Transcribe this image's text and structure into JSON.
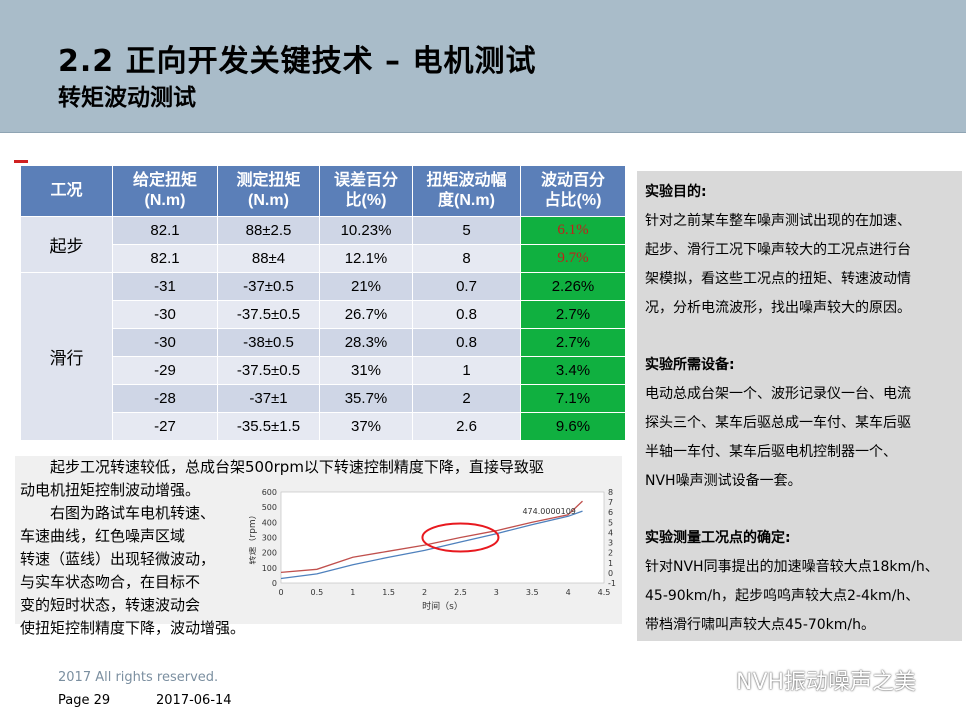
{
  "header": {
    "title": "2.2 正向开发关键技术 – 电机测试",
    "subtitle": "转矩波动测试"
  },
  "table": {
    "headers": [
      "工况",
      "给定扭矩\n(N.m)",
      "测定扭矩\n(N.m)",
      "误差百分\n比(%)",
      "扭矩波动幅\n度(N.m)",
      "波动百分\n占比(%)"
    ],
    "groups": [
      {
        "name": "起步",
        "rows": [
          [
            "82.1",
            "88±2.5",
            "10.23%",
            "5",
            "6.1%"
          ],
          [
            "82.1",
            "88±4",
            "12.1%",
            "8",
            "9.7%"
          ]
        ]
      },
      {
        "name": "滑行",
        "rows": [
          [
            "-31",
            "-37±0.5",
            "21%",
            "0.7",
            "2.26%"
          ],
          [
            "-30",
            "-37.5±0.5",
            "26.7%",
            "0.8",
            "2.7%"
          ],
          [
            "-30",
            "-38±0.5",
            "28.3%",
            "0.8",
            "2.7%"
          ],
          [
            "-29",
            "-37.5±0.5",
            "31%",
            "1",
            "3.4%"
          ],
          [
            "-28",
            "-37±1",
            "35.7%",
            "2",
            "7.1%"
          ],
          [
            "-27",
            "-35.5±1.5",
            "37%",
            "2.6",
            "9.6%"
          ]
        ]
      }
    ]
  },
  "right_panel": {
    "purpose_title": "实验目的:",
    "purpose_lines": [
      "针对之前某车整车噪声测试出现的在加速、",
      "起步、滑行工况下噪声较大的工况点进行台",
      "架模拟，看这些工况点的扭矩、转速波动情",
      "况，分析电流波形，找出噪声较大的原因。"
    ],
    "equipment_title": "实验所需设备:",
    "equipment_lines": [
      "电动总成台架一个、波形记录仪一台、电流",
      "探头三个、某车后驱总成一车付、某车后驱",
      "半轴一车付、某车后驱电机控制器一个、",
      "NVH噪声测试设备一套。"
    ],
    "points_title": "实验测量工况点的确定:",
    "points_lines": [
      "针对NVH同事提出的加速噪音较大点18km/h、",
      "45-90km/h，起步呜呜声较大点2-4km/h、",
      "带档滑行啸叫声较大点45-70km/h。"
    ]
  },
  "para_top": [
    "起步工况转速较低，总成台架500rpm以下转速控制精度下降，直接导致驱",
    "动电机扭矩控制波动增强。"
  ],
  "para_left": [
    "右图为路试车电机转速、",
    "车速曲线，红色噪声区域",
    "转速（蓝线）出现轻微波动，",
    "与实车状态吻合，在目标不",
    "变的短时状态，转速波动会",
    "使扭矩控制精度下降，波动增强。"
  ],
  "chart_data": {
    "type": "line",
    "xlabel": "时间（s）",
    "ylabel": "转速（rpm）",
    "x_ticks": [
      "0",
      "0.5",
      "1",
      "1.5",
      "2",
      "2.5",
      "3",
      "3.5",
      "4",
      "4.5"
    ],
    "y_ticks": [
      "0",
      "100",
      "200",
      "300",
      "400",
      "500",
      "600"
    ],
    "y2_ticks": [
      "-1",
      "0",
      "1",
      "2",
      "3",
      "4",
      "5",
      "6",
      "7",
      "8"
    ],
    "annotation": "474.0000109",
    "xlim": [
      0,
      4.5
    ],
    "ylim": [
      0,
      600
    ],
    "y2lim": [
      -1,
      8
    ],
    "series": [
      {
        "color": "#c0504d",
        "x": [
          0,
          0.5,
          1,
          1.5,
          2,
          2.5,
          3,
          3.5,
          4,
          4.2
        ],
        "y": [
          70,
          90,
          170,
          210,
          250,
          300,
          345,
          400,
          450,
          540
        ]
      },
      {
        "color": "#4f81bd",
        "x": [
          0,
          0.5,
          1,
          1.5,
          2,
          2.5,
          3,
          3.5,
          4,
          4.2
        ],
        "y": [
          30,
          60,
          120,
          170,
          215,
          270,
          325,
          385,
          440,
          474
        ]
      }
    ],
    "highlight": {
      "x": 2.5,
      "y": 300,
      "color": "#e8191f"
    }
  },
  "footer": {
    "copyright": "2017 All rights reserved.",
    "page": "Page 29",
    "date": "2017-06-14"
  },
  "watermark": "NVH振动噪声之美"
}
